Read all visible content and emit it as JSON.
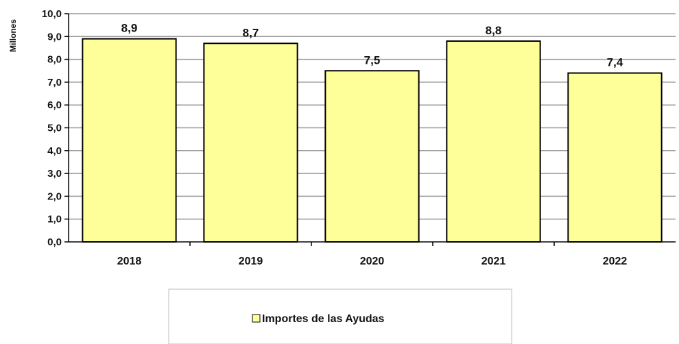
{
  "chart_data": {
    "type": "bar",
    "categories": [
      "2018",
      "2019",
      "2020",
      "2021",
      "2022"
    ],
    "series": [
      {
        "name": "Importes de las Ayudas",
        "values": [
          8.9,
          8.7,
          7.5,
          8.8,
          7.4
        ]
      }
    ],
    "data_labels": [
      "8,9",
      "8,7",
      "7,5",
      "8,8",
      "7,4"
    ],
    "ylabel": "Millones",
    "ylim": [
      0,
      10
    ],
    "yticks": [
      0,
      1,
      2,
      3,
      4,
      5,
      6,
      7,
      8,
      9,
      10
    ],
    "ytick_labels": [
      "0,0",
      "1,0",
      "2,0",
      "3,0",
      "4,0",
      "5,0",
      "6,0",
      "7,0",
      "8,0",
      "9,0",
      "10,0"
    ],
    "grid": true,
    "legend_position": "bottom",
    "colors": {
      "bar_fill": "#ffff99",
      "bar_stroke": "#000000",
      "grid": "#9a9a9a"
    }
  }
}
